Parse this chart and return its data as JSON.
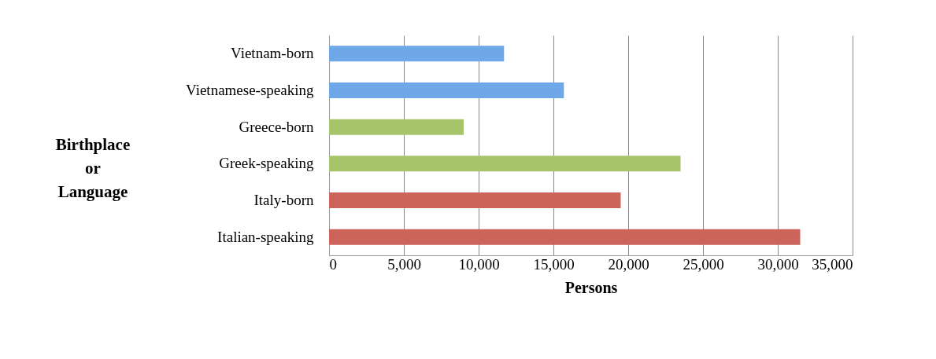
{
  "chart_data": {
    "type": "bar",
    "orientation": "horizontal",
    "categories": [
      "Vietnam-born",
      "Vietnamese-speaking",
      "Greece-born",
      "Greek-speaking",
      "Italy-born",
      "Italian-speaking"
    ],
    "values": [
      11700,
      15700,
      9000,
      23500,
      19500,
      31500
    ],
    "colors": [
      "#6fa8e8",
      "#6fa8e8",
      "#a8c46a",
      "#a8c46a",
      "#cc645c",
      "#cc645c"
    ],
    "xlim": [
      0,
      35000
    ],
    "xticks": [
      0,
      {
        "value": 5000,
        "label": "5,000"
      },
      {
        "value": 10000,
        "label": "10,000"
      },
      {
        "value": 15000,
        "label": "15,000"
      },
      {
        "value": 20000,
        "label": "20,000"
      },
      {
        "value": 25000,
        "label": "25,000"
      },
      {
        "value": 30000,
        "label": "30,000"
      },
      {
        "value": 35000,
        "label": "35,000"
      }
    ],
    "xlabel": "Persons",
    "ylabel": "Birthplace or Language",
    "grid": "x"
  }
}
